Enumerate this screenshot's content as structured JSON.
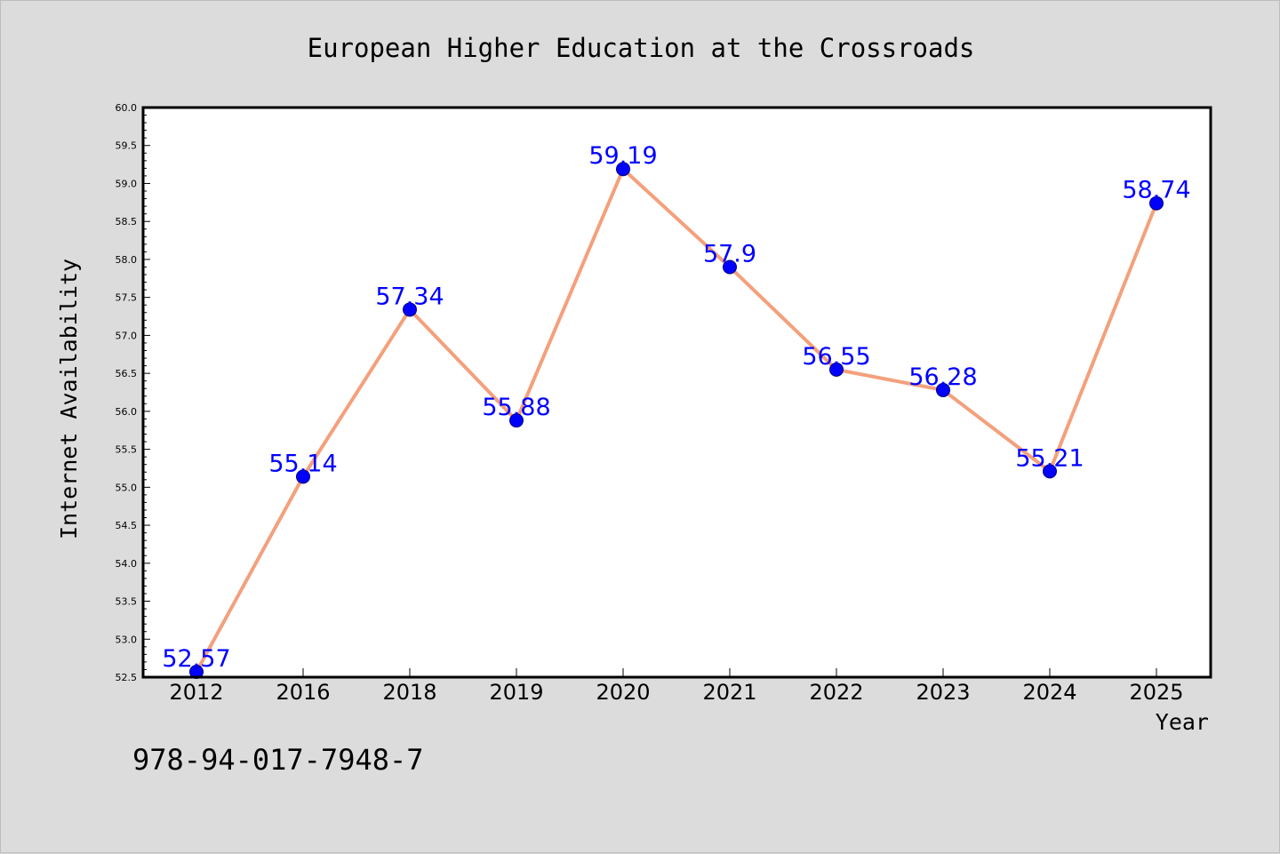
{
  "footer_text": "978-94-017-7948-7",
  "chart_data": {
    "type": "line",
    "title": "European Higher Education at the Crossroads",
    "xlabel": "Year",
    "ylabel": "Internet Availability",
    "categories": [
      "2012",
      "2016",
      "2018",
      "2019",
      "2020",
      "2021",
      "2022",
      "2023",
      "2024",
      "2025"
    ],
    "series": [
      {
        "values": [
          52.57,
          55.14,
          57.34,
          55.88,
          59.19,
          57.9,
          56.55,
          56.28,
          55.21,
          58.74
        ],
        "data_labels": [
          "52.57",
          "55.14",
          "57.34",
          "55.88",
          "59.19",
          "57.9",
          "56.55",
          "56.28",
          "55.21",
          "58.74"
        ]
      }
    ],
    "ylim": [
      52.5,
      60.0
    ],
    "yticks": [
      "52.5",
      "53.0",
      "53.5",
      "54.0",
      "54.5",
      "55.0",
      "55.5",
      "56.0",
      "56.5",
      "57.0",
      "57.5",
      "58.0",
      "58.5",
      "59.0",
      "59.5",
      "60.0"
    ],
    "grid": false,
    "legend": "none",
    "colors": {
      "line": "#f4a07c",
      "marker": "#0000ff",
      "data_label": "#0000ff",
      "plot_background": "#ffffff",
      "figure_background": "#dcdcdc"
    }
  }
}
